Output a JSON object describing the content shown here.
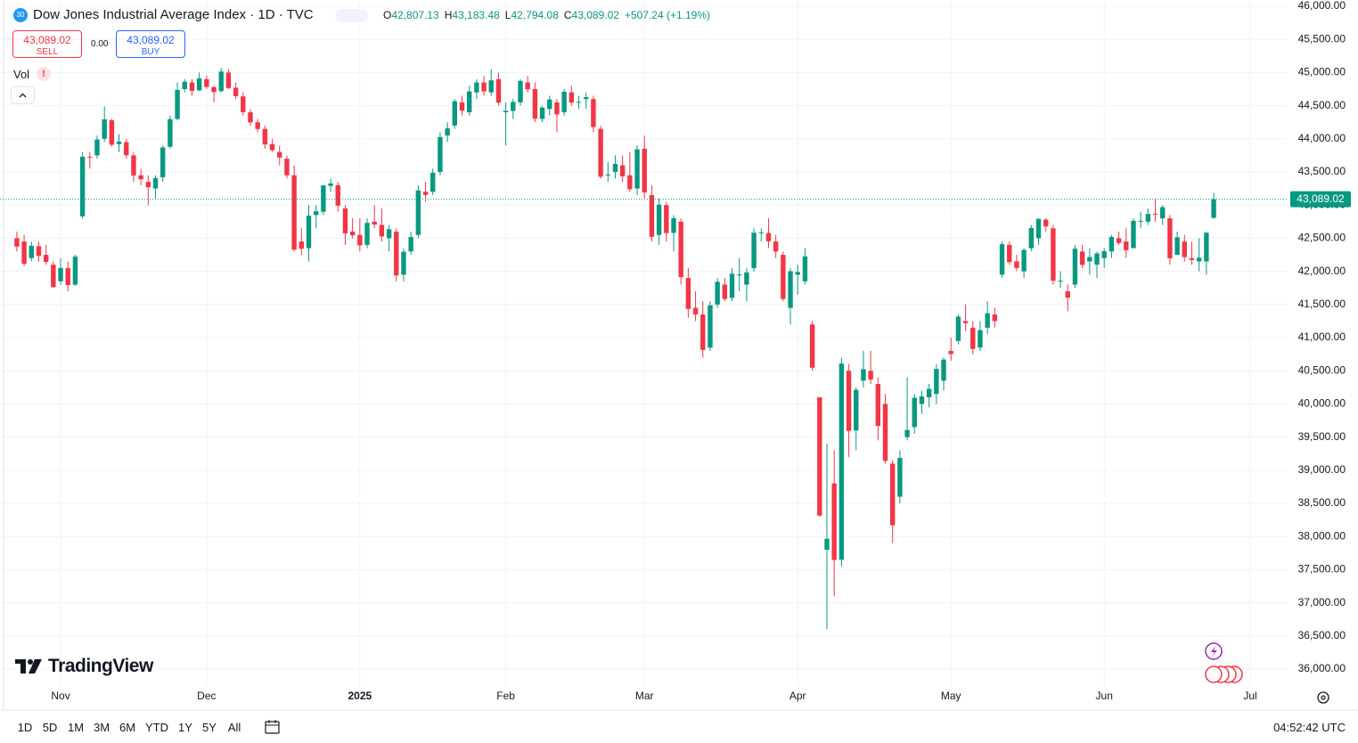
{
  "header": {
    "badge": "30",
    "title": "Dow Jones Industrial Average Index · 1D · TVC",
    "ohlc": [
      {
        "key": "O",
        "value": "42,807.13"
      },
      {
        "key": "H",
        "value": "43,183.48"
      },
      {
        "key": "L",
        "value": "42,794.08"
      },
      {
        "key": "C",
        "value": "43,089.02"
      }
    ],
    "change": "+507.24 (+1.19%)"
  },
  "trade": {
    "sell_price": "43,089.02",
    "sell": "SELL",
    "spread": "0.00",
    "buy_price": "43,089.02",
    "buy": "BUY"
  },
  "indicator": "Vol",
  "logo": "TradingView",
  "toolbar": {
    "ranges": [
      "1D",
      "5D",
      "1M",
      "3M",
      "6M",
      "YTD",
      "1Y",
      "5Y",
      "All"
    ],
    "clock": "04:52:42 UTC"
  },
  "chart_data": {
    "type": "candlestick",
    "categories": [
      null,
      null,
      null,
      null,
      null,
      null,
      "Nov",
      null,
      null,
      null,
      null,
      null,
      null,
      null,
      null,
      null,
      null,
      null,
      null,
      null,
      null,
      null,
      null,
      null,
      null,
      null,
      "Dec",
      null,
      null,
      null,
      null,
      null,
      null,
      null,
      null,
      null,
      null,
      null,
      null,
      null,
      null,
      null,
      null,
      null,
      null,
      null,
      null,
      "2025",
      null,
      null,
      null,
      null,
      null,
      null,
      null,
      null,
      null,
      null,
      null,
      null,
      null,
      null,
      null,
      null,
      null,
      null,
      null,
      "Feb",
      null,
      null,
      null,
      null,
      null,
      null,
      null,
      null,
      null,
      null,
      null,
      null,
      null,
      null,
      null,
      null,
      null,
      null,
      "Mar",
      null,
      null,
      null,
      null,
      null,
      null,
      null,
      null,
      null,
      null,
      null,
      null,
      null,
      null,
      null,
      null,
      null,
      null,
      null,
      null,
      "Apr",
      null,
      null,
      null,
      null,
      null,
      null,
      null,
      null,
      null,
      null,
      null,
      null,
      null,
      null,
      null,
      null,
      null,
      null,
      null,
      null,
      "May",
      null,
      null,
      null,
      null,
      null,
      null,
      null,
      null,
      null,
      null,
      null,
      null,
      null,
      null,
      null,
      null,
      null,
      null,
      null,
      null,
      "Jun",
      null,
      null,
      null,
      null,
      null,
      null,
      null,
      null,
      null,
      null,
      null,
      null,
      null,
      null,
      null,
      null,
      null,
      null,
      null,
      "Jul"
    ],
    "open": [
      42500,
      42450,
      42200,
      42380,
      42250,
      42100,
      41850,
      42050,
      41800,
      42830,
      43730,
      43750,
      44000,
      44280,
      43920,
      43950,
      43750,
      43450,
      43350,
      43250,
      43420,
      43880,
      44300,
      44750,
      44850,
      44730,
      44900,
      44780,
      44720,
      45000,
      44770,
      44640,
      44400,
      44250,
      44150,
      43920,
      43800,
      43700,
      43450,
      42450,
      42350,
      42850,
      42900,
      43290,
      43300,
      42950,
      42600,
      42550,
      42400,
      42750,
      42700,
      42500,
      42600,
      41950,
      42300,
      42550,
      43200,
      43200,
      43500,
      44050,
      44200,
      44550,
      44400,
      44700,
      44850,
      44700,
      44900,
      44400,
      44420,
      44550,
      44850,
      44750,
      44300,
      44450,
      44550,
      44400,
      44700,
      44550,
      44600,
      44600,
      44150,
      43450,
      43500,
      43600,
      43450,
      43250,
      43850,
      43150,
      42550,
      43000,
      42580,
      42750,
      41900,
      41450,
      41350,
      40850,
      41500,
      41800,
      41600,
      41950,
      41800,
      42050,
      42580,
      42580,
      42450,
      42250,
      41450,
      41950,
      41850,
      41200,
      40100,
      37800,
      38800,
      37650,
      40500,
      39600,
      40350,
      40500,
      40300,
      40000,
      39100,
      38600,
      39500,
      39650,
      40000,
      40100,
      40150,
      40350,
      40800,
      40950,
      41250,
      41150,
      40850,
      41150,
      41350,
      41950,
      42400,
      42150,
      42000,
      42350,
      42500,
      42780,
      42650,
      41850,
      41700,
      41800,
      42300,
      42150,
      42100,
      42200,
      42300,
      42500,
      42450,
      42350,
      42750,
      42750,
      42870,
      42800,
      42800,
      42250,
      42450,
      42200,
      42150,
      42150,
      42807.13,
      null,
      null,
      null,
      null,
      null
    ],
    "high": [
      42600,
      42550,
      42450,
      42450,
      42400,
      42150,
      42200,
      42150,
      42250,
      43800,
      43800,
      44050,
      44490,
      44300,
      44070,
      44000,
      43800,
      43550,
      43450,
      43450,
      43900,
      44350,
      44850,
      44900,
      44900,
      45000,
      44950,
      44800,
      45070,
      45050,
      44850,
      44700,
      44450,
      44300,
      44200,
      44000,
      43900,
      43750,
      43600,
      42650,
      43000,
      43000,
      43300,
      43400,
      43350,
      43000,
      42800,
      42800,
      42800,
      43000,
      42950,
      42700,
      42650,
      42350,
      42600,
      43300,
      43350,
      43550,
      44100,
      44250,
      44600,
      44650,
      44800,
      44900,
      44950,
      45050,
      45000,
      44550,
      44600,
      44900,
      44950,
      44850,
      44500,
      44650,
      44600,
      44750,
      44800,
      44650,
      44700,
      44650,
      44200,
      43650,
      43750,
      43750,
      43800,
      43900,
      44050,
      43300,
      43100,
      43050,
      42850,
      42800,
      42050,
      41700,
      41550,
      41550,
      41900,
      41900,
      42050,
      42200,
      42050,
      42650,
      42650,
      42800,
      42550,
      42300,
      42050,
      42100,
      42350,
      41250,
      40100,
      39400,
      39300,
      40700,
      40600,
      40250,
      40800,
      40800,
      40400,
      40150,
      39150,
      39300,
      40400,
      40150,
      40200,
      40300,
      40600,
      40700,
      41000,
      41350,
      41500,
      41250,
      41250,
      41550,
      41450,
      42450,
      42450,
      42250,
      42350,
      42700,
      42800,
      42800,
      42700,
      42000,
      41800,
      42400,
      42400,
      42350,
      42300,
      42350,
      42550,
      42600,
      42650,
      42800,
      42900,
      42950,
      43100,
      43000,
      42850,
      42600,
      42550,
      42450,
      42500,
      42600,
      43183.48,
      null,
      null,
      null,
      null,
      null
    ],
    "low": [
      42300,
      42080,
      42150,
      42150,
      42100,
      41750,
      41800,
      41700,
      41780,
      42800,
      43550,
      43700,
      43950,
      43880,
      43800,
      43700,
      43350,
      43300,
      43000,
      43100,
      43350,
      43850,
      44280,
      44700,
      44650,
      44720,
      44750,
      44550,
      44700,
      44750,
      44600,
      44350,
      44200,
      44100,
      43850,
      43800,
      43600,
      43400,
      42300,
      42250,
      42150,
      42650,
      42850,
      43200,
      42900,
      42400,
      42500,
      42300,
      42350,
      42650,
      42450,
      42300,
      41850,
      41850,
      42250,
      42500,
      43050,
      43150,
      43450,
      43950,
      44150,
      44350,
      44350,
      44600,
      44650,
      44650,
      44500,
      43900,
      44300,
      44500,
      44700,
      44250,
      44250,
      44350,
      44100,
      44350,
      44500,
      44450,
      44450,
      44100,
      43400,
      43350,
      43400,
      43350,
      43200,
      43150,
      43100,
      42450,
      42400,
      42450,
      42300,
      41800,
      41300,
      41250,
      40700,
      40800,
      41450,
      41550,
      41550,
      41700,
      41550,
      42000,
      42450,
      42350,
      42200,
      41550,
      41200,
      41650,
      41800,
      40500,
      38300,
      36600,
      37100,
      37550,
      39200,
      39300,
      40250,
      40300,
      39450,
      39100,
      37900,
      38500,
      39450,
      39550,
      39850,
      39950,
      40000,
      40200,
      40650,
      40900,
      41100,
      40750,
      40800,
      41050,
      41150,
      41900,
      42100,
      42000,
      41900,
      42300,
      42400,
      42600,
      41800,
      41750,
      41400,
      41750,
      42050,
      41950,
      41900,
      42050,
      42200,
      42400,
      42200,
      42350,
      42650,
      42700,
      42750,
      42700,
      42100,
      42250,
      42150,
      42100,
      42000,
      41950,
      42794.08,
      null,
      null,
      null,
      null,
      null
    ],
    "close": [
      42374,
      42114,
      42387,
      42233,
      42142,
      41763,
      42052,
      41794,
      42222,
      43729,
      43729,
      43989,
      44293,
      43911,
      43958,
      43751,
      43445,
      43390,
      43269,
      43408,
      43870,
      44297,
      44737,
      44861,
      44722,
      44911,
      44782,
      44705,
      45014,
      44766,
      44643,
      44402,
      44248,
      44149,
      43914,
      43828,
      43717,
      43450,
      42327,
      42342,
      42840,
      42907,
      43297,
      43326,
      42992,
      42574,
      42544,
      42392,
      42732,
      42707,
      42528,
      42636,
      41938,
      42297,
      42518,
      43222,
      43153,
      43488,
      44026,
      44157,
      44566,
      44424,
      44714,
      44850,
      44714,
      44882,
      44545,
      44422,
      44556,
      44873,
      44747,
      44303,
      44471,
      44593,
      44368,
      44711,
      44546,
      44556,
      44628,
      44177,
      43428,
      43461,
      43621,
      43434,
      43240,
      43841,
      43191,
      42521,
      43007,
      42579,
      42802,
      41912,
      41433,
      41351,
      40814,
      41489,
      41842,
      41582,
      41965,
      41953,
      41985,
      42583,
      42588,
      42455,
      42300,
      41584,
      42002,
      41990,
      42226,
      40546,
      38315,
      37966,
      37646,
      40609,
      39594,
      40213,
      40525,
      40368,
      39669,
      39142,
      38170,
      39187,
      39607,
      40093,
      40114,
      40228,
      40528,
      40669,
      40753,
      41317,
      41219,
      40829,
      41114,
      41368,
      41249,
      42410,
      42140,
      42051,
      42323,
      42655,
      42792,
      42677,
      41860,
      41859,
      41603,
      42343,
      42098,
      42216,
      42270,
      42306,
      42520,
      42428,
      42320,
      42763,
      42762,
      42867,
      42865,
      42968,
      42198,
      42515,
      42215,
      42172,
      42207,
      42582,
      43089.02,
      null,
      null,
      null,
      null,
      null
    ],
    "up_color": "#089981",
    "down_color": "#f23645",
    "ylim": [
      35745,
      46094
    ],
    "yticks": [
      {
        "value": 36000,
        "label": "36,000.00"
      },
      {
        "value": 36500,
        "label": "36,500.00"
      },
      {
        "value": 37000,
        "label": "37,000.00"
      },
      {
        "value": 37500,
        "label": "37,500.00"
      },
      {
        "value": 38000,
        "label": "38,000.00"
      },
      {
        "value": 38500,
        "label": "38,500.00"
      },
      {
        "value": 39000,
        "label": "39,000.00"
      },
      {
        "value": 39500,
        "label": "39,500.00"
      },
      {
        "value": 40000,
        "label": "40,000.00"
      },
      {
        "value": 40500,
        "label": "40,500.00"
      },
      {
        "value": 41000,
        "label": "41,000.00"
      },
      {
        "value": 41500,
        "label": "41,500.00"
      },
      {
        "value": 42000,
        "label": "42,000.00"
      },
      {
        "value": 42500,
        "label": "42,500.00"
      },
      {
        "value": 43000,
        "label": "43,000.00"
      },
      {
        "value": 43500,
        "label": "43,500.00"
      },
      {
        "value": 44000,
        "label": "44,000.00"
      },
      {
        "value": 44500,
        "label": "44,500.00"
      },
      {
        "value": 45000,
        "label": "45,000.00"
      },
      {
        "value": 45500,
        "label": "45,500.00"
      },
      {
        "value": 46000,
        "label": "46,000.00"
      }
    ],
    "last_price_label": "43,089.02",
    "grid": true
  }
}
